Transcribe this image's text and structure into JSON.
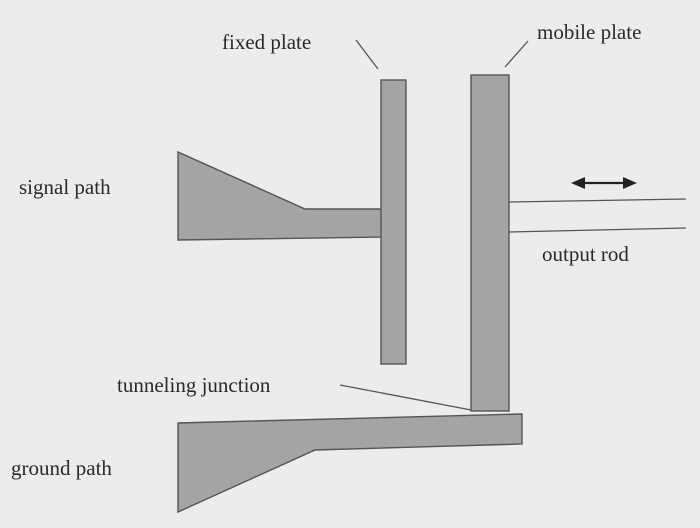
{
  "labels": {
    "fixed_plate": "fixed plate",
    "mobile_plate": "mobile plate",
    "signal_path": "signal path",
    "output_rod": "output rod",
    "tunneling_junction": "tunneling junction",
    "ground_path": "ground path"
  },
  "colors": {
    "background": "#ececec",
    "component_fill": "#a4a4a4",
    "component_stroke": "#555555",
    "text": "#2a2a2a"
  },
  "icons": {
    "motion_arrow": "double-headed-arrow-icon"
  }
}
